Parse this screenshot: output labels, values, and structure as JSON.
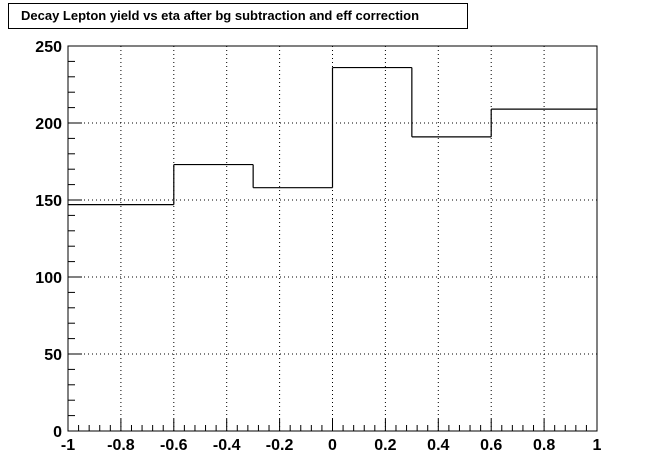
{
  "chart_data": {
    "type": "line",
    "step": true,
    "title": "Decay Lepton yield vs eta after bg subtraction and eff correction",
    "xlabel": "",
    "ylabel": "",
    "xlim": [
      -1,
      1
    ],
    "ylim": [
      0,
      250
    ],
    "grid": true,
    "x_ticks": [
      -1,
      -0.8,
      -0.6,
      -0.4,
      -0.2,
      0,
      0.2,
      0.4,
      0.6,
      0.8,
      1
    ],
    "x_tick_labels": [
      "-1",
      "-0.8",
      "-0.6",
      "-0.4",
      "-0.2",
      "0",
      "0.2",
      "0.4",
      "0.6",
      "0.8",
      "1"
    ],
    "y_ticks": [
      0,
      50,
      100,
      150,
      200,
      250
    ],
    "y_tick_labels": [
      "0",
      "50",
      "100",
      "150",
      "200",
      "250"
    ],
    "bins": [
      {
        "x_low": -1.0,
        "x_high": -0.6,
        "value": 147
      },
      {
        "x_low": -0.6,
        "x_high": -0.3,
        "value": 173
      },
      {
        "x_low": -0.3,
        "x_high": 0.0,
        "value": 158
      },
      {
        "x_low": 0.0,
        "x_high": 0.3,
        "value": 236
      },
      {
        "x_low": 0.3,
        "x_high": 0.6,
        "value": 191
      },
      {
        "x_low": 0.6,
        "x_high": 1.0,
        "value": 209
      }
    ],
    "colors": {
      "line": "#000000",
      "grid": "#000000",
      "background": "#ffffff"
    }
  }
}
